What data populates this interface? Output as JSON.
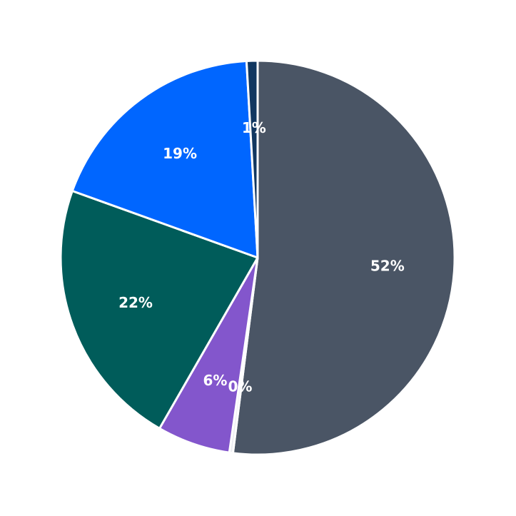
{
  "chart_data": {
    "type": "pie",
    "title": "",
    "start": "12 o'clock",
    "direction": "clockwise",
    "slices": [
      {
        "label": "52%",
        "value": 52.0,
        "color": "#4a5565"
      },
      {
        "label": "0%",
        "value": 0.3,
        "color": "#ececf1"
      },
      {
        "label": "6%",
        "value": 6.0,
        "color": "#8356cc"
      },
      {
        "label": "22%",
        "value": 22.2,
        "color": "#005c5a"
      },
      {
        "label": "19%",
        "value": 18.6,
        "color": "#0066ff"
      },
      {
        "label": "1%",
        "value": 0.9,
        "color": "#113760"
      }
    ],
    "slice_border_color": "#ffffff"
  }
}
